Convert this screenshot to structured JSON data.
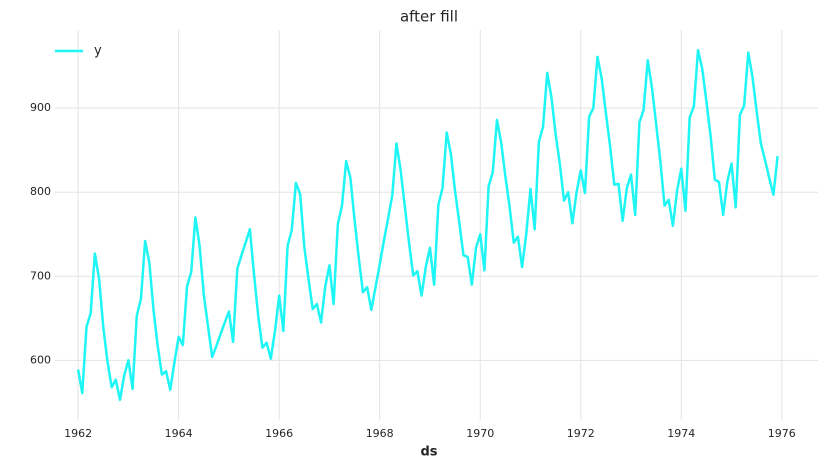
{
  "chart_data": {
    "type": "line",
    "title": "after fill",
    "xlabel": "ds",
    "x": [
      1962.0,
      1962.083,
      1962.167,
      1962.25,
      1962.333,
      1962.417,
      1962.5,
      1962.583,
      1962.667,
      1962.75,
      1962.833,
      1962.917,
      1963.0,
      1963.083,
      1963.167,
      1963.25,
      1963.333,
      1963.417,
      1963.5,
      1963.583,
      1963.667,
      1963.75,
      1963.833,
      1963.917,
      1964.0,
      1964.083,
      1964.167,
      1964.25,
      1964.333,
      1964.417,
      1964.5,
      1964.583,
      1964.667,
      1964.75,
      1964.833,
      1964.917,
      1965.0,
      1965.083,
      1965.167,
      1965.25,
      1965.333,
      1965.417,
      1965.5,
      1965.583,
      1965.667,
      1965.75,
      1965.833,
      1965.917,
      1966.0,
      1966.083,
      1966.167,
      1966.25,
      1966.333,
      1966.417,
      1966.5,
      1966.583,
      1966.667,
      1966.75,
      1966.833,
      1966.917,
      1967.0,
      1967.083,
      1967.167,
      1967.25,
      1967.333,
      1967.417,
      1967.5,
      1967.583,
      1967.667,
      1967.75,
      1967.833,
      1967.917,
      1968.0,
      1968.083,
      1968.167,
      1968.25,
      1968.333,
      1968.417,
      1968.5,
      1968.583,
      1968.667,
      1968.75,
      1968.833,
      1968.917,
      1969.0,
      1969.083,
      1969.167,
      1969.25,
      1969.333,
      1969.417,
      1969.5,
      1969.583,
      1969.667,
      1969.75,
      1969.833,
      1969.917,
      1970.0,
      1970.083,
      1970.167,
      1970.25,
      1970.333,
      1970.417,
      1970.5,
      1970.583,
      1970.667,
      1970.75,
      1970.833,
      1970.917,
      1971.0,
      1971.083,
      1971.167,
      1971.25,
      1971.333,
      1971.417,
      1971.5,
      1971.583,
      1971.667,
      1971.75,
      1971.833,
      1971.917,
      1972.0,
      1972.083,
      1972.167,
      1972.25,
      1972.333,
      1972.417,
      1972.5,
      1972.583,
      1972.667,
      1972.75,
      1972.833,
      1972.917,
      1973.0,
      1973.083,
      1973.167,
      1973.25,
      1973.333,
      1973.417,
      1973.5,
      1973.583,
      1973.667,
      1973.75,
      1973.833,
      1973.917,
      1974.0,
      1974.083,
      1974.167,
      1974.25,
      1974.333,
      1974.417,
      1974.5,
      1974.583,
      1974.667,
      1974.75,
      1974.833,
      1974.917,
      1975.0,
      1975.083,
      1975.167,
      1975.25,
      1975.333,
      1975.417,
      1975.5,
      1975.583,
      1975.667,
      1975.75,
      1975.833,
      1975.917
    ],
    "series": [
      {
        "name": "y",
        "color": "#1ff5f5",
        "values": [
          589,
          561,
          640,
          656,
          727,
          697,
          640,
          599,
          568,
          577,
          553,
          582,
          600,
          566,
          653,
          673,
          742,
          716,
          660,
          617,
          583,
          587,
          565,
          598,
          628,
          618,
          688,
          705,
          770,
          736,
          678,
          641,
          604,
          617,
          631,
          645,
          658,
          622,
          709,
          725,
          740,
          756,
          702,
          653,
          615,
          621,
          602,
          635,
          677,
          635,
          736,
          755,
          811,
          798,
          735,
          697,
          661,
          667,
          645,
          688,
          713,
          667,
          762,
          784,
          837,
          817,
          767,
          722,
          681,
          687,
          660,
          687,
          714,
          742,
          769,
          796,
          858,
          826,
          783,
          740,
          701,
          706,
          677,
          711,
          734,
          690,
          785,
          805,
          871,
          845,
          801,
          764,
          725,
          723,
          690,
          734,
          750,
          707,
          807,
          824,
          886,
          859,
          819,
          783,
          740,
          747,
          711,
          751,
          804,
          756,
          860,
          878,
          942,
          913,
          869,
          834,
          790,
          800,
          763,
          800,
          826,
          799,
          890,
          900,
          961,
          935,
          894,
          855,
          809,
          810,
          766,
          805,
          821,
          773,
          883,
          898,
          957,
          924,
          881,
          837,
          784,
          791,
          760,
          802,
          828,
          778,
          889,
          902,
          969,
          947,
          908,
          867,
          815,
          812,
          773,
          813,
          834,
          782,
          892,
          903,
          966,
          937,
          896,
          858,
          838,
          817,
          797,
          843
        ]
      }
    ],
    "xlim": [
      1961.54,
      1976.72
    ],
    "xticks": [
      1962,
      1964,
      1966,
      1968,
      1970,
      1972,
      1974,
      1976
    ],
    "ylim": [
      529,
      993
    ],
    "yticks": [
      600,
      700,
      800,
      900
    ],
    "grid": true,
    "legend": "upper-left"
  }
}
